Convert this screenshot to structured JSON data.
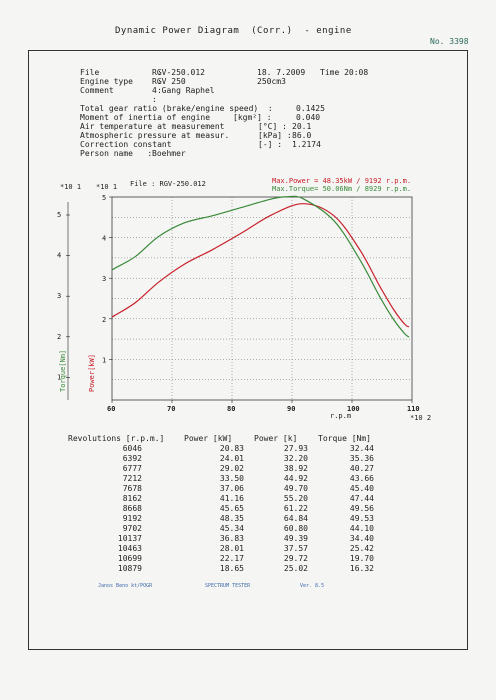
{
  "header": {
    "title": "Dynamic Power Diagram  (Corr.)  - engine",
    "doc_no": "No. 3398"
  },
  "info": {
    "file_label": "File            :",
    "file": "RGV-250.012",
    "date": "18. 7.2009",
    "time": "Time 20:08",
    "engine_type_label": "Engine type     :",
    "engine_type": "RGV 250",
    "displacement": "250cm3",
    "comment_label": "Comment         :",
    "comment": "4 Gang Raphel",
    "blank_colon": ":",
    "params": [
      {
        "label": "Total gear ratio (brake/engine speed)  :",
        "value": "0.1425"
      },
      {
        "label": "Moment of inertia of engine",
        "unit": "[kgm²] :",
        "value": "0.040"
      },
      {
        "label": "Air temperature at measurement",
        "unit": "[°C] :",
        "value": "20.1"
      },
      {
        "label": "Atmospheric pressure at measur.",
        "unit": "[kPa] :",
        "value": "86.0"
      },
      {
        "label": "Correction constant",
        "unit": "[-] :",
        "value": "1.2174"
      },
      {
        "label": "Person name   :",
        "value": "Boehmer"
      }
    ]
  },
  "colors": {
    "power": "#c8202a",
    "torque": "#3a8a3a",
    "grid": "#666666",
    "axis": "#222222"
  },
  "chart_data": {
    "type": "line",
    "file_label": "File : RGV-250.012",
    "legend": [
      "Max.Power = 48.35kW /  9192 r.p.m.",
      "Max.Torque= 50.06Nm /  8929 r.p.m."
    ],
    "xlabel": "r.p.m",
    "x_multiplier": "*10 2",
    "xlim": [
      60,
      110
    ],
    "x_ticks": [
      "60",
      "70",
      "80",
      "90",
      "100",
      "110"
    ],
    "ylim": [
      0,
      5
    ],
    "left_multiplier": "*10 1",
    "right_multiplier": "*10 1",
    "torque_ticks": [
      "1",
      "2",
      "3",
      "4",
      "5"
    ],
    "power_ticks": [
      "1",
      "2",
      "3",
      "4",
      "5"
    ],
    "torque_axis_label": "Torque[Nm]",
    "power_axis_label": "Power[kW]",
    "series": [
      {
        "name": "Power",
        "unit": "kW",
        "x": [
          60,
          60.46,
          63.92,
          67.77,
          72.12,
          76.78,
          81.62,
          86.68,
          91.92,
          97.02,
          101.37,
          104.63,
          106.99,
          108.79,
          109.5
        ],
        "values": [
          20.5,
          20.83,
          24.01,
          29.02,
          33.5,
          37.06,
          41.16,
          45.65,
          48.35,
          45.34,
          36.83,
          28.01,
          22.17,
          18.65,
          18.0
        ]
      },
      {
        "name": "Torque",
        "unit": "Nm",
        "x": [
          60,
          60.46,
          63.92,
          67.77,
          72.12,
          76.78,
          81.62,
          86.68,
          89.29,
          91.92,
          97.02,
          101.37,
          104.63,
          106.99,
          108.79,
          109.5
        ],
        "values": [
          32.0,
          32.44,
          35.36,
          40.27,
          43.66,
          45.4,
          47.44,
          49.56,
          50.06,
          49.53,
          44.1,
          34.4,
          25.42,
          19.7,
          16.32,
          15.5
        ]
      }
    ]
  },
  "table": {
    "headers": [
      "Revolutions [r.p.m.]",
      "Power [kW]",
      "Power [k]",
      "Torque [Nm]"
    ],
    "rows": [
      [
        "6046",
        "20.83",
        "27.93",
        "32.44"
      ],
      [
        "6392",
        "24.01",
        "32.20",
        "35.36"
      ],
      [
        "6777",
        "29.02",
        "38.92",
        "40.27"
      ],
      [
        "7212",
        "33.50",
        "44.92",
        "43.66"
      ],
      [
        "7678",
        "37.06",
        "49.70",
        "45.40"
      ],
      [
        "8162",
        "41.16",
        "55.20",
        "47.44"
      ],
      [
        "8668",
        "45.65",
        "61.22",
        "49.56"
      ],
      [
        "9192",
        "48.35",
        "64.84",
        "49.53"
      ],
      [
        "9702",
        "45.34",
        "60.80",
        "44.10"
      ],
      [
        "10137",
        "36.83",
        "49.39",
        "34.40"
      ],
      [
        "10463",
        "28.01",
        "37.57",
        "25.42"
      ],
      [
        "10699",
        "22.17",
        "29.72",
        "19.70"
      ],
      [
        "10879",
        "18.65",
        "25.02",
        "16.32"
      ]
    ]
  },
  "footer": [
    "Janos Beno kt/POGR",
    "SPECTRUM TESTER",
    "Ver. 8.5"
  ]
}
